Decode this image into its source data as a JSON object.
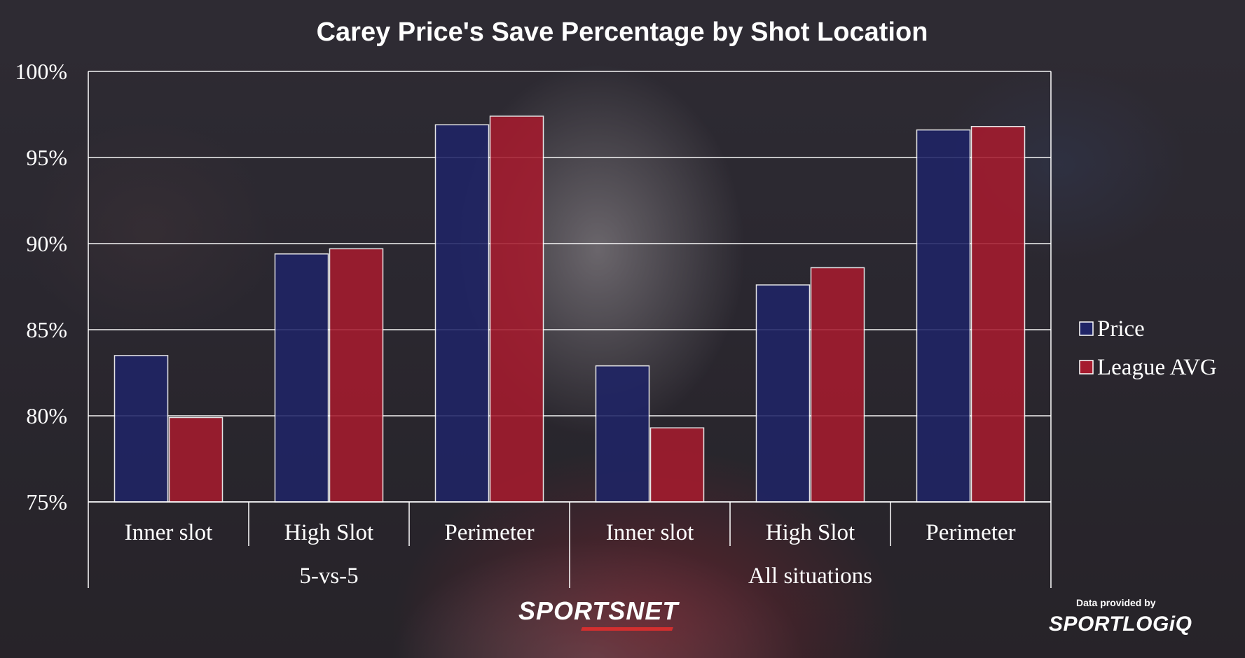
{
  "chart_data": {
    "type": "bar",
    "title": "Carey Price's Save Percentage by Shot Location",
    "groups": [
      {
        "label": "5-vs-5",
        "categories": [
          "Inner slot",
          "High Slot",
          "Perimeter"
        ]
      },
      {
        "label": "All situations",
        "categories": [
          "Inner slot",
          "High Slot",
          "Perimeter"
        ]
      }
    ],
    "categories": [
      "Inner slot",
      "High Slot",
      "Perimeter",
      "Inner slot",
      "High Slot",
      "Perimeter"
    ],
    "series": [
      {
        "name": "Price",
        "color": "#1f2466",
        "values": [
          83.5,
          89.4,
          96.9,
          82.9,
          87.6,
          96.6
        ]
      },
      {
        "name": "League AVG",
        "color": "#a51b2e",
        "values": [
          79.9,
          89.7,
          97.4,
          79.3,
          88.6,
          96.8
        ]
      }
    ],
    "ylim": [
      75,
      100
    ],
    "yticks": [
      "75%",
      "80%",
      "85%",
      "90%",
      "95%",
      "100%"
    ],
    "grid": true,
    "legend": "right"
  },
  "branding": {
    "network": "SPORTSNET",
    "provider_label": "Data provided by",
    "provider": "SPORTLOGiQ"
  }
}
